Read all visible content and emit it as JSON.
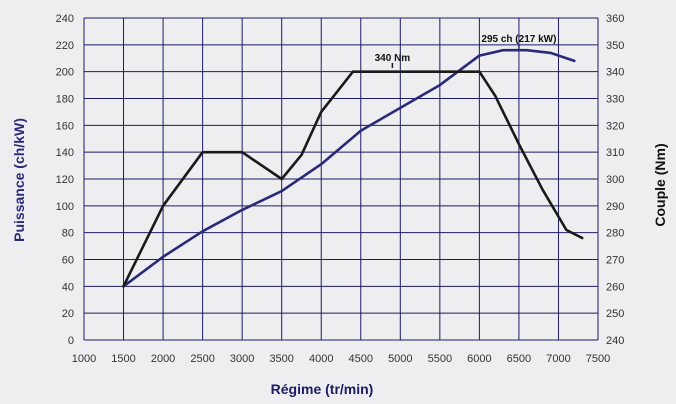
{
  "chart_data": {
    "type": "line",
    "title": "",
    "xlabel": "Régime (tr/min)",
    "ylabel_left": "Puissance (ch/kW)",
    "ylabel_right": "Couple (Nm)",
    "xlim": [
      1000,
      7500
    ],
    "ylim_left": [
      0,
      240
    ],
    "ylim_right": [
      240,
      360
    ],
    "x_ticks": [
      1000,
      1500,
      2000,
      2500,
      3000,
      3500,
      4000,
      4500,
      5000,
      5500,
      6000,
      6500,
      7000,
      7500
    ],
    "y_ticks_left": [
      0,
      20,
      40,
      60,
      80,
      100,
      120,
      140,
      160,
      180,
      200,
      220,
      240
    ],
    "y_ticks_right": [
      240,
      250,
      260,
      270,
      280,
      290,
      300,
      310,
      320,
      330,
      340,
      350,
      360
    ],
    "grid": true,
    "colors": {
      "background": "#eeeef0",
      "grid": "#1c1c66",
      "power": "#2a2a7a",
      "torque": "#1a1a1a",
      "left_axis_title": "#2a2a7a",
      "right_axis_title": "#111111",
      "x_axis_title": "#1c1c66"
    },
    "series": [
      {
        "axis": "left",
        "x": [
          1500,
          2000,
          2500,
          3000,
          3500,
          4000,
          4500,
          5000,
          5500,
          6000,
          6300,
          6600,
          6900,
          7200
        ],
        "y": [
          40,
          62,
          81,
          97,
          111,
          131,
          156,
          173,
          190,
          212,
          216,
          216,
          214,
          208
        ]
      },
      {
        "axis": "right",
        "x": [
          1500,
          2000,
          2500,
          3000,
          3500,
          3750,
          4000,
          4400,
          4500,
          5000,
          5500,
          6000,
          6200,
          6500,
          6800,
          7100,
          7300
        ],
        "y": [
          260,
          290,
          310,
          310,
          300,
          309,
          325,
          340,
          340,
          340,
          340,
          340,
          331,
          313,
          296,
          281,
          278
        ]
      }
    ],
    "annotations": [
      {
        "text": "340 Nm",
        "x": 4900,
        "y_right": 344,
        "series": "torque"
      },
      {
        "text": "295 ch (217 kW)",
        "x": 6500,
        "y_left": 222,
        "series": "power"
      }
    ]
  }
}
